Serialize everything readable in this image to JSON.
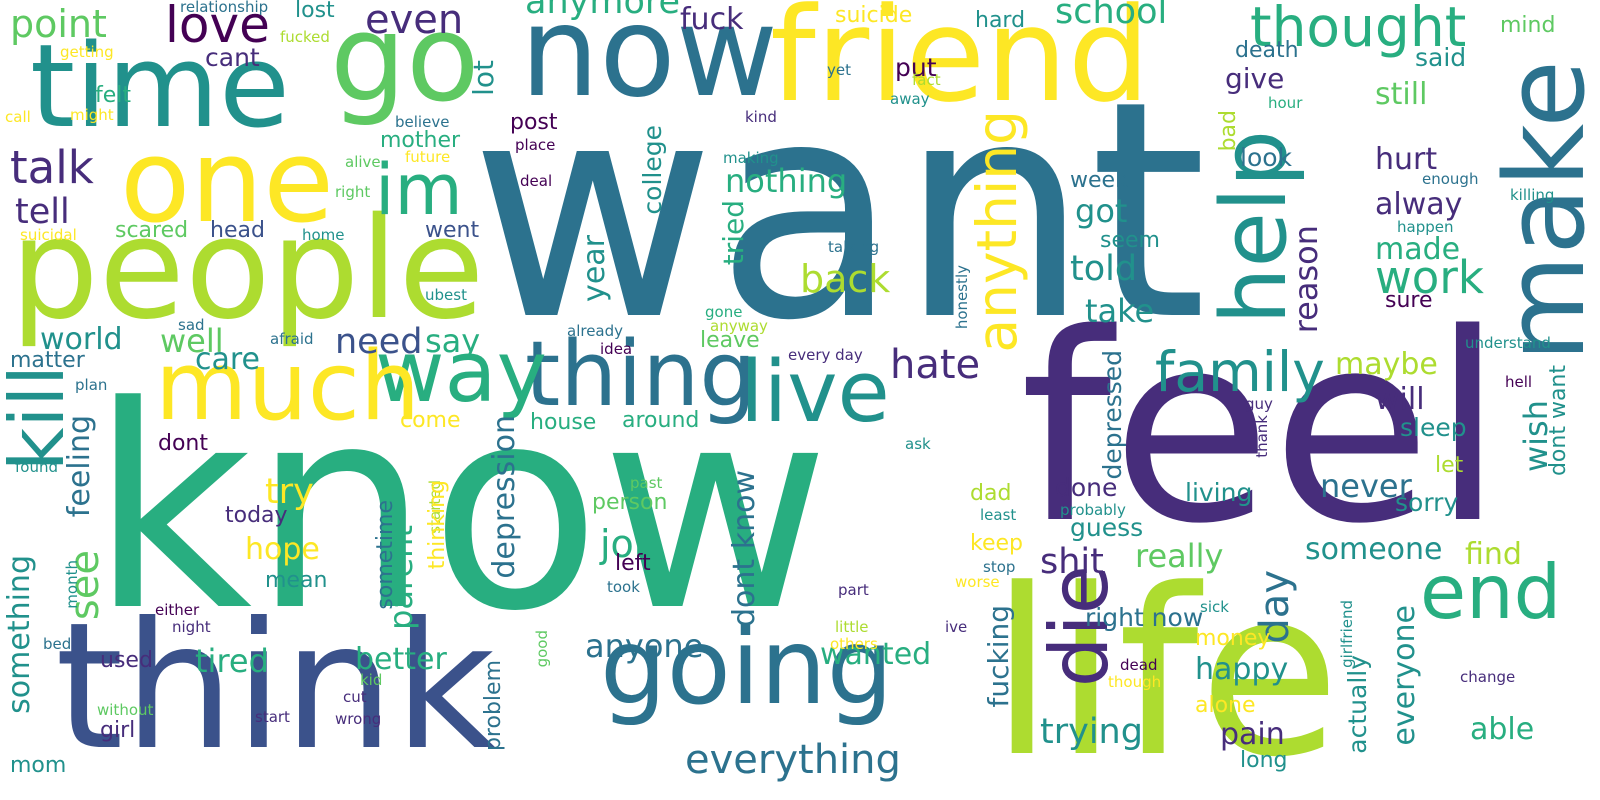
{
  "palette": {
    "dark_purple": "#440154",
    "indigo": "#472d7b",
    "blue": "#3b528b",
    "steel": "#2c728e",
    "teal": "#21918c",
    "green_teal": "#28ae80",
    "green": "#5ec962",
    "lime": "#addc30",
    "yellow": "#fde725"
  },
  "words": [
    "want",
    "know",
    "feel",
    "life",
    "think",
    "people",
    "friend",
    "now",
    "time",
    "go",
    "one",
    "going",
    "make",
    "thing",
    "way",
    "much",
    "kill",
    "im",
    "help",
    "live",
    "die",
    "end",
    "family",
    "anything",
    "thought",
    "school",
    "even",
    "love",
    "point",
    "talk",
    "tell",
    "anymore",
    "fuck",
    "hate",
    "everything",
    "something",
    "work",
    "back",
    "told",
    "say",
    "need",
    "world",
    "well",
    "care",
    "try",
    "hope",
    "tired",
    "better",
    "job",
    "anyone",
    "really",
    "day",
    "happy",
    "pain",
    "trying",
    "suicide",
    "hard",
    "lot",
    "still",
    "reason",
    "year",
    "depression",
    "depressed",
    "feeling",
    "see",
    "parent",
    "dont know",
    "nothing",
    "tried",
    "college",
    "wanted",
    "take",
    "made",
    "alway",
    "give",
    "put",
    "said",
    "mind",
    "death",
    "got",
    "week",
    "seem",
    "will",
    "never",
    "wish",
    "sleep",
    "maybe",
    "someone",
    "find",
    "everyone",
    "able",
    "actually",
    "shit",
    "right now",
    "fucking",
    "guess",
    "done",
    "living",
    "sorry",
    "let",
    "look",
    "hurt",
    "sure",
    "cant",
    "lost",
    "relationship",
    "getting",
    "fucked",
    "call",
    "might",
    "felt",
    "believe",
    "mother",
    "alive",
    "future",
    "right",
    "suicidal",
    "scared",
    "head",
    "went",
    "home",
    "sad",
    "afraid",
    "matter",
    "plan",
    "found",
    "bed",
    "mom",
    "either",
    "night",
    "girl",
    "used",
    "without",
    "kid",
    "cut",
    "start",
    "wrong",
    "started",
    "problem",
    "good",
    "month",
    "sometime",
    "thinking",
    "dad",
    "keep",
    "mean",
    "today",
    "left",
    "person",
    "past",
    "took",
    "part",
    "little",
    "others",
    "dead",
    "though",
    "money",
    "alone",
    "long",
    "sick",
    "ive",
    "change",
    "girlfriend",
    "stop",
    "worse",
    "least",
    "probably",
    "thank",
    "ask",
    "guy",
    "hell",
    "dont want",
    "understand",
    "killing",
    "enough",
    "happen",
    "hour",
    "fact",
    "away",
    "yet",
    "kind",
    "place",
    "deal",
    "post",
    "making",
    "talking",
    "already",
    "idea",
    "anyway",
    "gone",
    "leave",
    "every day",
    "honestly",
    "ubest",
    "come",
    "house",
    "around",
    "bad",
    "dont"
  ]
}
